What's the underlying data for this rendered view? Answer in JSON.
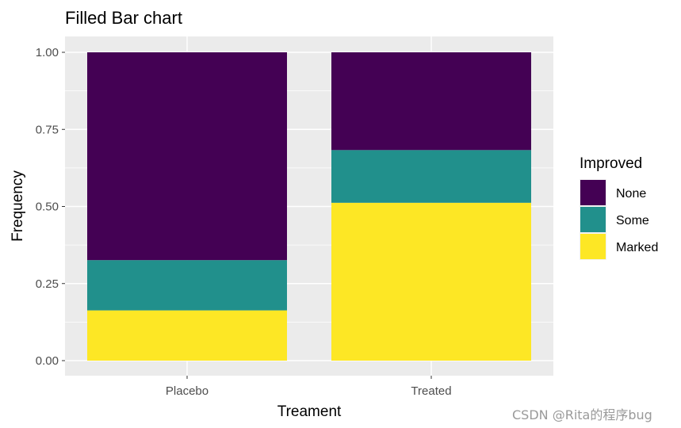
{
  "chart_data": {
    "type": "bar",
    "stacked": true,
    "position": "fill",
    "title": "Filled Bar chart",
    "xlabel": "Treament",
    "ylabel": "Frequency",
    "categories": [
      "Placebo",
      "Treated"
    ],
    "ylim": [
      0,
      1
    ],
    "yticks": [
      0.0,
      0.25,
      0.5,
      0.75,
      1.0
    ],
    "ytick_labels": [
      "0.00",
      "0.25",
      "0.50",
      "0.75",
      "1.00"
    ],
    "grid": true,
    "legend": {
      "title": "Improved",
      "placement": "right"
    },
    "series": [
      {
        "name": "Marked",
        "color": "#FDE725",
        "values": [
          0.163,
          0.512
        ]
      },
      {
        "name": "Some",
        "color": "#21908C",
        "values": [
          0.163,
          0.171
        ]
      },
      {
        "name": "None",
        "color": "#440154",
        "values": [
          0.674,
          0.317
        ]
      }
    ],
    "legend_order": [
      "None",
      "Some",
      "Marked"
    ]
  },
  "watermark": "CSDN @Rita的程序bug"
}
